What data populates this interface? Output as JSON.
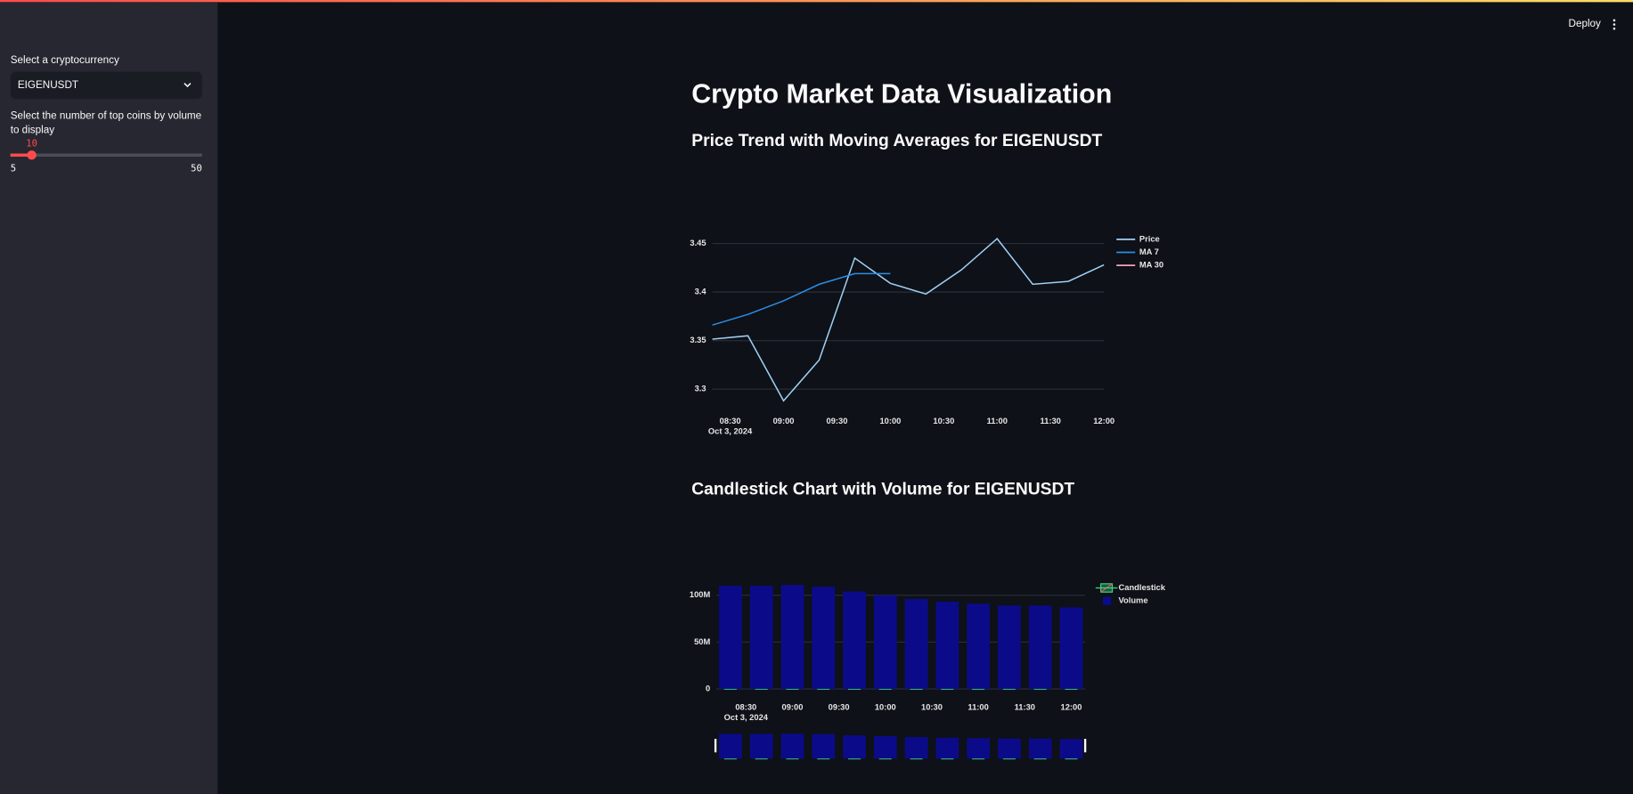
{
  "header": {
    "deploy": "Deploy"
  },
  "sidebar": {
    "select_label": "Select a cryptocurrency",
    "select_value": "EIGENUSDT",
    "slider_label": "Select the number of top coins by volume to display",
    "slider_value": 10,
    "slider_min": 5,
    "slider_max": 50
  },
  "main": {
    "title": "Crypto Market Data Visualization"
  },
  "chart_data": [
    {
      "type": "line",
      "title": "Price Trend with Moving Averages for EIGENUSDT",
      "x": [
        "2024-10-03 08:20",
        "2024-10-03 08:40",
        "2024-10-03 09:00",
        "2024-10-03 09:20",
        "2024-10-03 09:40",
        "2024-10-03 10:00",
        "2024-10-03 10:20",
        "2024-10-03 10:40",
        "2024-10-03 11:00",
        "2024-10-03 11:20",
        "2024-10-03 11:40",
        "2024-10-03 12:00"
      ],
      "series": [
        {
          "name": "Price",
          "color": "#9fd0f7",
          "values": [
            3.3515,
            3.355,
            3.288,
            3.33,
            3.435,
            3.409,
            3.398,
            3.423,
            3.455,
            3.408,
            3.411,
            3.428
          ]
        },
        {
          "name": "MA 7",
          "color": "#2a8ee8",
          "values": [
            3.366,
            3.377,
            3.391,
            3.408,
            3.419,
            3.419,
            null,
            null,
            null,
            null,
            null,
            null
          ]
        },
        {
          "name": "MA 30",
          "color": "#f5a3b3",
          "values": [
            null,
            null,
            null,
            null,
            null,
            null,
            null,
            null,
            null,
            null,
            null,
            null
          ]
        }
      ],
      "xlim": [
        "2024-10-03 08:20",
        "2024-10-03 12:00"
      ],
      "xticks": [
        {
          "value": "2024-10-03 08:30",
          "label": "08:30"
        },
        {
          "value": "2024-10-03 09:00",
          "label": "09:00"
        },
        {
          "value": "2024-10-03 09:30",
          "label": "09:30"
        },
        {
          "value": "2024-10-03 10:00",
          "label": "10:00"
        },
        {
          "value": "2024-10-03 10:30",
          "label": "10:30"
        },
        {
          "value": "2024-10-03 11:00",
          "label": "11:00"
        },
        {
          "value": "2024-10-03 11:30",
          "label": "11:30"
        },
        {
          "value": "2024-10-03 12:00",
          "label": "12:00"
        }
      ],
      "xtick_date": "Oct 3, 2024",
      "ylim": [
        3.278,
        3.462
      ],
      "yticks": [
        3.3,
        3.35,
        3.4,
        3.45
      ],
      "grid": true,
      "legend": "right"
    },
    {
      "type": "candlestick",
      "title": "Candlestick Chart with Volume for EIGENUSDT",
      "x": [
        "2024-10-03 08:20",
        "2024-10-03 08:40",
        "2024-10-03 09:00",
        "2024-10-03 09:20",
        "2024-10-03 09:40",
        "2024-10-03 10:00",
        "2024-10-03 10:20",
        "2024-10-03 10:40",
        "2024-10-03 11:00",
        "2024-10-03 11:20",
        "2024-10-03 11:40",
        "2024-10-03 12:00"
      ],
      "series": [
        {
          "name": "Candlestick",
          "type": "candlestick",
          "color": "#3dd68c",
          "down_color": "#ef553b",
          "open": [
            3.345,
            3.3515,
            3.355,
            3.288,
            3.33,
            3.435,
            3.409,
            3.398,
            3.423,
            3.455,
            3.408,
            3.411
          ],
          "high": [
            3.36,
            3.365,
            3.36,
            3.34,
            3.44,
            3.44,
            3.415,
            3.43,
            3.46,
            3.46,
            3.42,
            3.435
          ],
          "low": [
            3.34,
            3.345,
            3.28,
            3.28,
            3.325,
            3.4,
            3.39,
            3.39,
            3.42,
            3.4,
            3.4,
            3.405
          ],
          "close": [
            3.3515,
            3.355,
            3.288,
            3.33,
            3.435,
            3.409,
            3.398,
            3.423,
            3.455,
            3.408,
            3.411,
            3.428
          ]
        },
        {
          "name": "Volume",
          "type": "bar",
          "color": "#0b0b8a",
          "values": [
            110000000,
            110000000,
            111000000,
            109000000,
            104000000,
            100000000,
            96000000,
            93000000,
            91000000,
            89000000,
            89000000,
            87000000
          ]
        }
      ],
      "xlim": [
        "2024-10-03 08:11",
        "2024-10-03 12:09"
      ],
      "xticks": [
        {
          "value": "2024-10-03 08:30",
          "label": "08:30"
        },
        {
          "value": "2024-10-03 09:00",
          "label": "09:00"
        },
        {
          "value": "2024-10-03 09:30",
          "label": "09:30"
        },
        {
          "value": "2024-10-03 10:00",
          "label": "10:00"
        },
        {
          "value": "2024-10-03 10:30",
          "label": "10:30"
        },
        {
          "value": "2024-10-03 11:00",
          "label": "11:00"
        },
        {
          "value": "2024-10-03 11:30",
          "label": "11:30"
        },
        {
          "value": "2024-10-03 12:00",
          "label": "12:00"
        }
      ],
      "xtick_date": "Oct 3, 2024",
      "ylim": [
        0,
        116000000
      ],
      "yticks": [
        0,
        {
          "value": 50000000,
          "label": "50M"
        },
        {
          "value": 100000000,
          "label": "100M"
        }
      ],
      "grid": true,
      "legend": "right",
      "range_slider": true
    }
  ]
}
